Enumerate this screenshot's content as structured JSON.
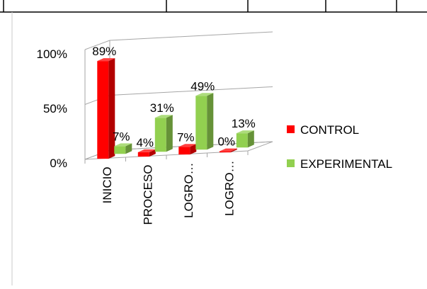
{
  "chart_data": {
    "type": "bar",
    "title": "",
    "xlabel": "",
    "ylabel": "",
    "ylim": [
      0,
      100
    ],
    "yticks": [
      "0%",
      "50%",
      "100%"
    ],
    "categories": [
      "INICIO",
      "PROCESO",
      "LOGRO…",
      "LOGRO…"
    ],
    "series": [
      {
        "name": "CONTROL",
        "values": [
          89,
          4,
          7,
          0
        ],
        "labels": [
          "89%",
          "4%",
          "7%",
          "0%"
        ],
        "color": "#ff0000"
      },
      {
        "name": "EXPERIMENTAL",
        "values": [
          7,
          31,
          49,
          13
        ],
        "labels": [
          "7%",
          "31%",
          "49%",
          "13%"
        ],
        "color": "#92d050"
      }
    ],
    "grid": true,
    "legend": "right",
    "projection": "3d"
  }
}
